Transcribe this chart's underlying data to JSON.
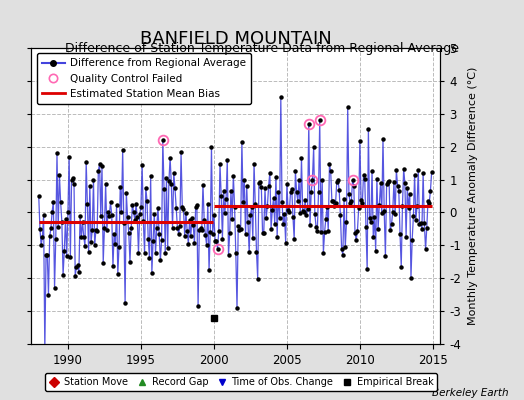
{
  "title": "BANFIELD MOUNTAIN",
  "subtitle": "Difference of Station Temperature Data from Regional Average",
  "ylabel": "Monthly Temperature Anomaly Difference (°C)",
  "xlabel_credit": "Berkeley Earth",
  "xlim": [
    1987.5,
    2015.5
  ],
  "ylim": [
    -4,
    5
  ],
  "yticks": [
    -4,
    -3,
    -2,
    -1,
    0,
    1,
    2,
    3,
    4,
    5
  ],
  "xticks": [
    1990,
    1995,
    2000,
    2005,
    2010,
    2015
  ],
  "bias_before_2000": -0.3,
  "bias_after_2000": 0.2,
  "break_year": 2000.0,
  "break_value": -3.2,
  "bg_color": "#e0e0e0",
  "plot_bg_color": "#ffffff",
  "line_color": "#4444dd",
  "bias_color": "#dd0000",
  "qc_fail_color": "#ff69b4",
  "grid_color": "#bbbbbb",
  "title_fontsize": 13,
  "subtitle_fontsize": 9,
  "tick_fontsize": 8.5,
  "qc_fail_times": [
    1996.5,
    2000.25,
    2006.5,
    2006.75,
    2007.25,
    2009.5
  ],
  "qc_fail_vals": [
    2.2,
    -1.1,
    2.7,
    1.0,
    2.8,
    1.0
  ]
}
